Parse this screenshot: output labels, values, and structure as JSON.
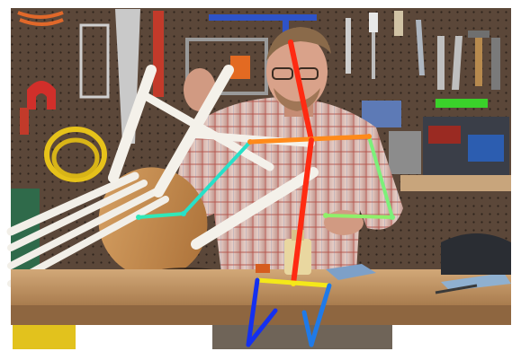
{
  "scene": {
    "description_hidden": "",
    "pose_colors": {
      "head_spine": "#ff2a12",
      "shoulders": "#ff8a1a",
      "right_upper_arm": "#28e0c8",
      "right_forearm": "#30e8b8",
      "left_upper_arm": "#7cf07a",
      "left_forearm": "#8ff06a",
      "hips": "#f4e81a",
      "right_leg": "#1430f0",
      "left_leg": "#1f7ae8"
    },
    "palette": {
      "pegboard": "#5a4638",
      "bench_top": "#c49a6c",
      "chair_wood": "#c8955a",
      "chair_white": "#f2efe8",
      "shirt": "#d9b7b0",
      "skin": "#d9a28a"
    },
    "icons": [
      "person",
      "chair",
      "tools",
      "pegboard",
      "workbench",
      "clamp"
    ]
  }
}
